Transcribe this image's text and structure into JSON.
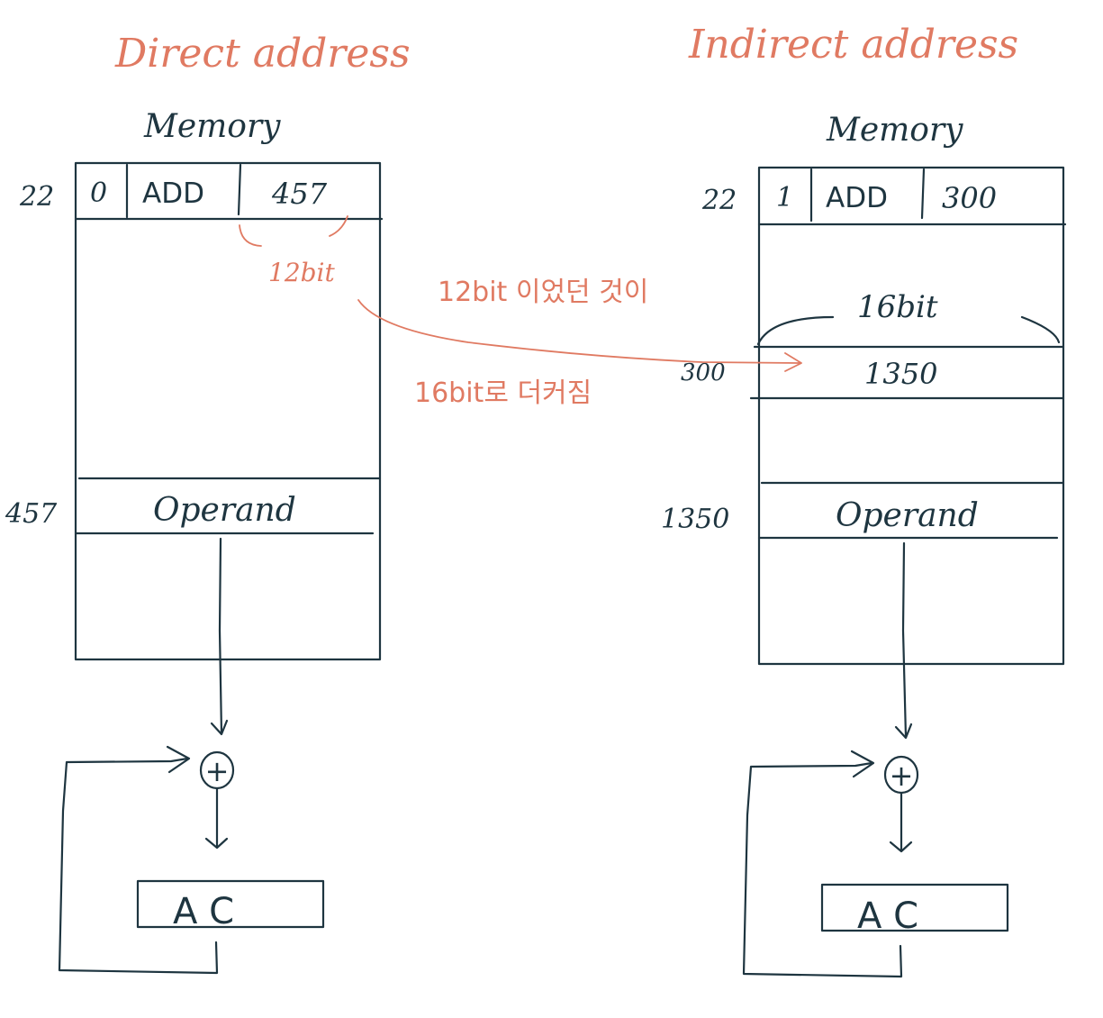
{
  "colors": {
    "ink": "#1e3540",
    "accent": "#e07a62",
    "background": "#ffffff"
  },
  "direct": {
    "title": "Direct address",
    "memory_label": "Memory",
    "addr_instr": "22",
    "mode_bit": "0",
    "opcode": "ADD",
    "address_field": "457",
    "field_width_label": "12bit",
    "addr_operand": "457",
    "operand_label": "Operand",
    "adder_symbol": "+",
    "register_label": "A C"
  },
  "indirect": {
    "title": "Indirect address",
    "memory_label": "Memory",
    "addr_instr": "22",
    "mode_bit": "1",
    "opcode": "ADD",
    "address_field": "300",
    "word_width_label": "16bit",
    "addr_pointer": "300",
    "pointer_value": "1350",
    "addr_operand": "1350",
    "operand_label": "Operand",
    "adder_symbol": "+",
    "register_label": "A C"
  },
  "annotation": {
    "line1": "12bit 이었던 것이",
    "line2": "16bit로 더커짐"
  }
}
